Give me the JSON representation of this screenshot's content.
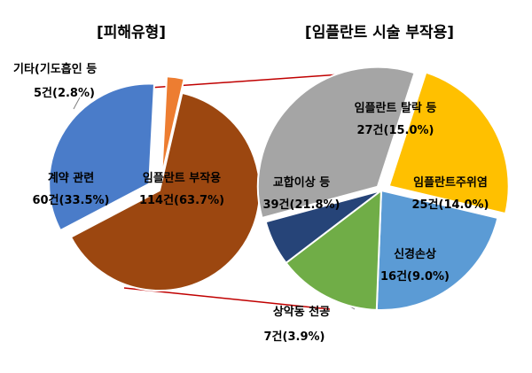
{
  "chart_data": [
    {
      "type": "pie",
      "title": "[피해유형]",
      "slices": [
        {
          "label": "임플란트 부작용",
          "value": 114,
          "display": "114건(63.7%)",
          "color": "#9C4710"
        },
        {
          "label": "계약 관련",
          "value": 60,
          "display": "60건(33.5%)",
          "color": "#4A7CC9"
        },
        {
          "label": "기타(기도흡인 등",
          "value": 5,
          "display": "5건(2.8%)",
          "color": "#ED7D31"
        }
      ]
    },
    {
      "type": "pie",
      "title": "[임플란트 시술 부작용]",
      "slices": [
        {
          "label": "임플란트 탈락 등",
          "value": 27,
          "display": "27건(15.0%)",
          "color": "#FFC000"
        },
        {
          "label": "임플란트주위염",
          "value": 25,
          "display": "25건(14.0%)",
          "color": "#5B9BD5"
        },
        {
          "label": "신경손상",
          "value": 16,
          "display": "16건(9.0%)",
          "color": "#70AD47"
        },
        {
          "label": "상악동 천공",
          "value": 7,
          "display": "7건(3.9%)",
          "color": "#264478"
        },
        {
          "label": "교합이상 등",
          "value": 39,
          "display": "39건(21.8%)",
          "color": "#A5A5A5"
        }
      ]
    }
  ]
}
